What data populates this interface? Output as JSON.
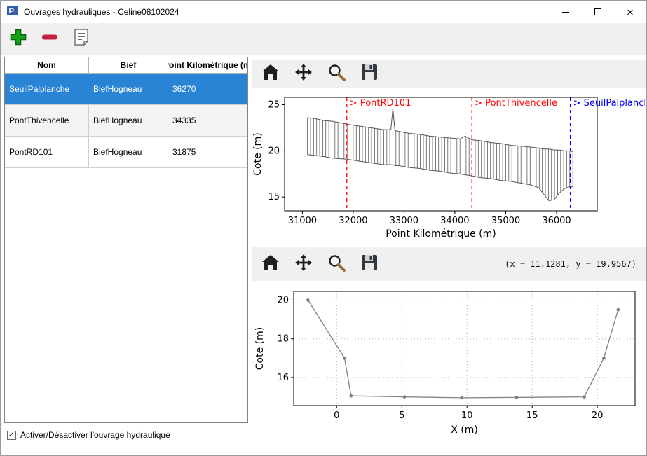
{
  "window": {
    "title": "Ouvrages hydrauliques - Celine08102024"
  },
  "table": {
    "columns": [
      "Nom",
      "Bief",
      "Point Kilométrique (m)"
    ],
    "rows": [
      {
        "nom": "SeuilPalplanche",
        "bief": "BiefHogneau",
        "pk": "36270"
      },
      {
        "nom": "PontThivencelle",
        "bief": "BiefHogneau",
        "pk": "34335"
      },
      {
        "nom": "PontRD101",
        "bief": "BiefHogneau",
        "pk": "31875"
      }
    ],
    "selected_row": 0
  },
  "footer": {
    "checkbox_label": "Activer/Désactiver l'ouvrage hydraulique",
    "checked": true
  },
  "plots": {
    "coords_readout": "(x = 11.1281,  y = 19.9567)"
  },
  "colors": {
    "selection_blue": "#2a84d6",
    "marker_red": "#ff0000",
    "marker_blue": "#0000ff",
    "profile_gray": "#5a5a5a",
    "section_gray": "#808080",
    "add_green": "#17a317",
    "remove_red": "#c41f3e"
  },
  "chart_data": [
    {
      "type": "area",
      "xlabel": "Point Kilométrique (m)",
      "ylabel": "Cote (m)",
      "xlim": [
        30650,
        36800
      ],
      "ylim": [
        13.5,
        25.8
      ],
      "xticks": [
        31000,
        32000,
        33000,
        34000,
        35000,
        36000
      ],
      "yticks": [
        15,
        20,
        25
      ],
      "grid": false,
      "hatch_step": 60,
      "profile": {
        "x": [
          31100,
          31250,
          31400,
          31600,
          31875,
          32100,
          32350,
          32600,
          32740,
          32780,
          32820,
          32900,
          33100,
          33300,
          33500,
          33700,
          33900,
          34100,
          34200,
          34335,
          34500,
          34700,
          34900,
          35100,
          35300,
          35500,
          35650,
          35750,
          35850,
          35950,
          36050,
          36150,
          36250,
          36320
        ],
        "top": [
          23.6,
          23.5,
          23.3,
          23.2,
          22.9,
          22.7,
          22.5,
          22.3,
          22.3,
          24.6,
          22.2,
          22.1,
          21.9,
          21.8,
          21.6,
          21.5,
          21.4,
          21.3,
          21.6,
          21.2,
          21.1,
          20.9,
          20.8,
          20.6,
          20.5,
          20.4,
          20.3,
          20.2,
          20.2,
          20.1,
          20.1,
          20.0,
          20.0,
          19.9
        ],
        "bottom": [
          19.6,
          19.5,
          19.4,
          19.2,
          19.1,
          18.9,
          18.7,
          18.5,
          18.5,
          18.5,
          18.4,
          18.4,
          18.2,
          18.1,
          17.9,
          17.8,
          17.6,
          17.5,
          17.4,
          17.3,
          17.1,
          17.0,
          16.8,
          16.7,
          16.5,
          16.3,
          16.0,
          15.3,
          14.6,
          14.7,
          15.4,
          15.9,
          16.1,
          16.1
        ]
      },
      "vlines": [
        {
          "x": 31875,
          "label": "> PontRD101",
          "color": "#ff0000"
        },
        {
          "x": 34335,
          "label": "> PontThivencelle",
          "color": "#ff0000"
        },
        {
          "x": 36270,
          "label": "> SeuilPalplanche",
          "color": "#0000ff"
        }
      ]
    },
    {
      "type": "line",
      "xlabel": "X (m)",
      "ylabel": "Cote (m)",
      "xlim": [
        -3.3,
        22.9
      ],
      "ylim": [
        14.55,
        20.45
      ],
      "xticks": [
        0,
        5,
        10,
        15,
        20
      ],
      "yticks": [
        16,
        18,
        20
      ],
      "grid": true,
      "series": [
        {
          "color": "#808080",
          "marker": true,
          "x": [
            -2.2,
            0.6,
            1.1,
            5.2,
            9.6,
            13.8,
            19.0,
            20.5,
            21.6
          ],
          "y": [
            20.0,
            17.0,
            15.05,
            15.0,
            14.95,
            14.97,
            15.0,
            17.0,
            19.5
          ]
        }
      ]
    }
  ]
}
